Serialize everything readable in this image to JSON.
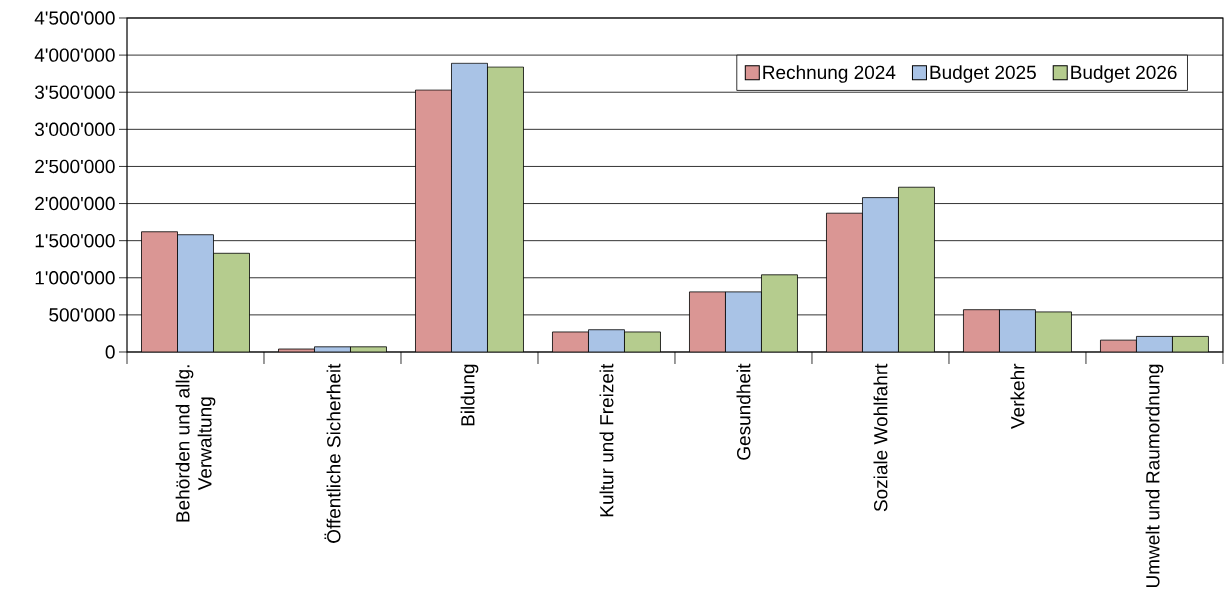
{
  "chart_data": {
    "type": "bar",
    "categories": [
      "Behörden und allg. Verwaltung",
      "Öffentliche Sicherheit",
      "Bildung",
      "Kultur und Freizeit",
      "Gesundheit",
      "Soziale Wohlfahrt",
      "Verkehr",
      "Umwelt und Raumordnung"
    ],
    "series": [
      {
        "name": "Rechnung 2024",
        "color": "#da9694",
        "values": [
          1620000,
          40000,
          3530000,
          270000,
          810000,
          1870000,
          570000,
          160000
        ]
      },
      {
        "name": "Budget 2025",
        "color": "#a9c3e6",
        "values": [
          1580000,
          70000,
          3890000,
          300000,
          810000,
          2080000,
          570000,
          210000
        ]
      },
      {
        "name": "Budget 2026",
        "color": "#b5cc8e",
        "values": [
          1330000,
          70000,
          3840000,
          270000,
          1040000,
          2220000,
          540000,
          210000
        ]
      }
    ],
    "ylim": [
      0,
      4500000
    ],
    "yticks": [
      0,
      {
        "value": 500000,
        "label": "500'000"
      },
      {
        "value": 1000000,
        "label": "1'000'000"
      },
      {
        "value": 1500000,
        "label": "1'500'000"
      },
      {
        "value": 2000000,
        "label": "2'000'000"
      },
      {
        "value": 2500000,
        "label": "2'500'000"
      },
      {
        "value": 3000000,
        "label": "3'000'000"
      },
      {
        "value": 3500000,
        "label": "3'500'000"
      },
      {
        "value": 4000000,
        "label": "4'000'000"
      },
      {
        "value": 4500000,
        "label": "4'500'000"
      }
    ],
    "grid": "y",
    "legend": "top right"
  }
}
